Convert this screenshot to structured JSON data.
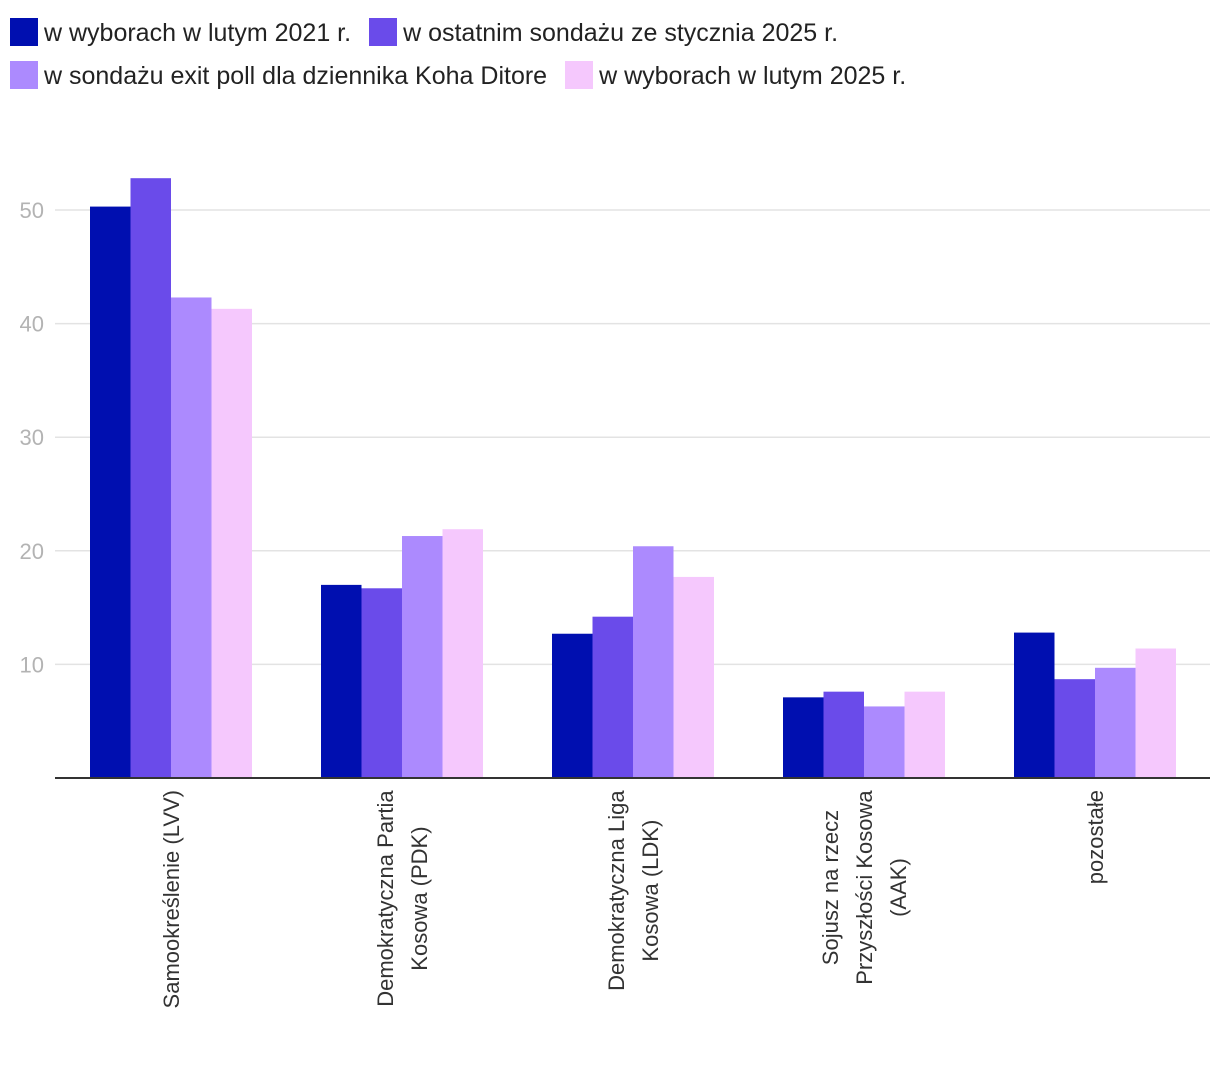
{
  "chart_data": {
    "type": "bar",
    "categories": [
      [
        "Samookreślenie (LVV)"
      ],
      [
        "Demokratyczna Partia",
        "Kosowa (PDK)"
      ],
      [
        "Demokratyczna Liga",
        "Kosowa (LDK)"
      ],
      [
        "Sojusz na rzecz",
        "Przyszłości Kosowa",
        "(AAK)"
      ],
      [
        "pozostałe"
      ]
    ],
    "series": [
      {
        "name": "w wyborach w lutym 2021 r.",
        "color": "#000fb0",
        "values": [
          50.3,
          17.0,
          12.7,
          7.1,
          12.8
        ]
      },
      {
        "name": "w ostatnim sondażu ze stycznia 2025 r.",
        "color": "#6a4bea",
        "values": [
          52.8,
          16.7,
          14.2,
          7.6,
          8.7
        ]
      },
      {
        "name": "w sondażu exit poll dla dziennika Koha Ditore",
        "color": "#ac8afe",
        "values": [
          42.3,
          21.3,
          20.4,
          6.3,
          9.7
        ]
      },
      {
        "name": "w wyborach w lutym 2025 r.",
        "color": "#f5c8fd",
        "values": [
          41.3,
          21.9,
          17.7,
          7.6,
          11.4
        ]
      }
    ],
    "yticks": [
      "10",
      "20",
      "30",
      "40",
      "50"
    ],
    "ylim": [
      0,
      60
    ],
    "grid": true,
    "legend_position": "top",
    "title": "",
    "xlabel": "",
    "ylabel": ""
  }
}
